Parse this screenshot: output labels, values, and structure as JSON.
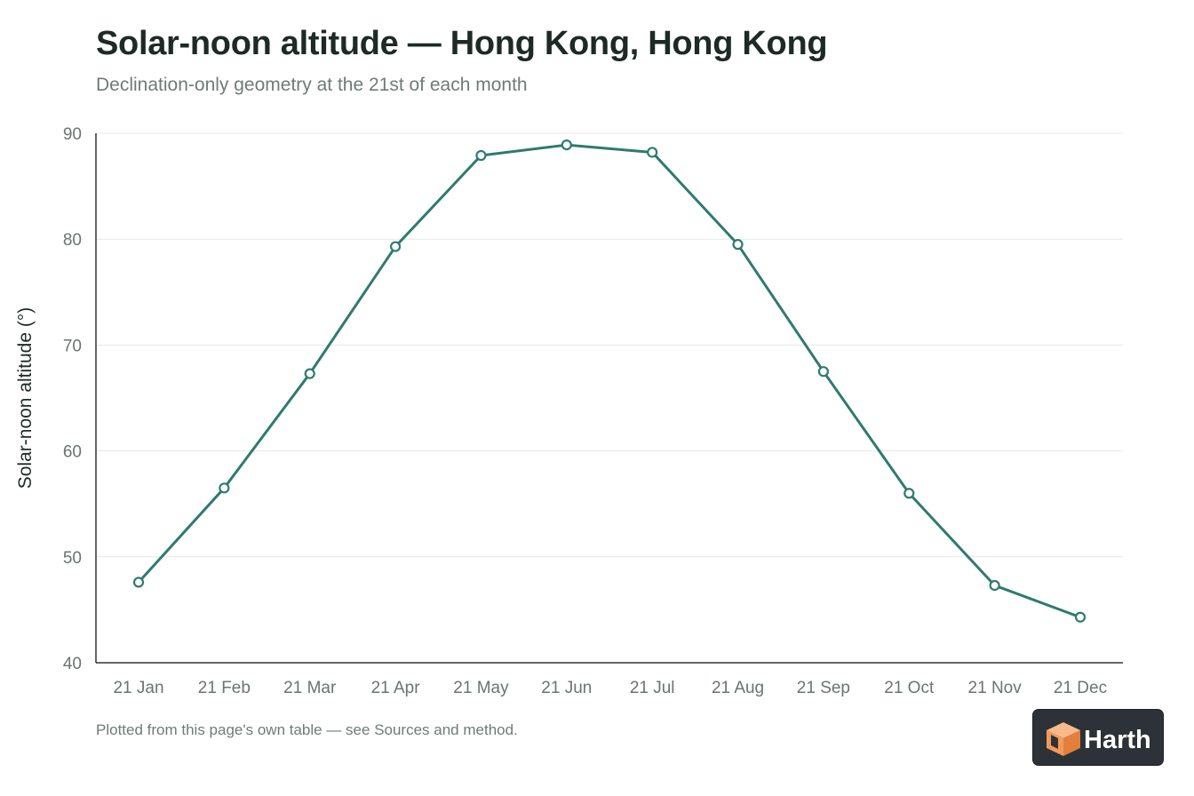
{
  "header": {
    "title": "Solar-noon altitude — Hong Kong, Hong Kong",
    "subtitle": "Declination-only geometry at the 21st of each month"
  },
  "footer": {
    "note": "Plotted from this page's own table — see Sources and method."
  },
  "logo": {
    "text": "Harth",
    "icon": "cube-icon"
  },
  "colors": {
    "series": "#2f7a70",
    "grid": "#e6e8e7",
    "axis": "#333333",
    "logo_bg": "#2c3237",
    "logo_orange": "#f29a5b"
  },
  "chart_data": {
    "type": "line",
    "title": "Solar-noon altitude — Hong Kong, Hong Kong",
    "subtitle": "Declination-only geometry at the 21st of each month",
    "xlabel": "",
    "ylabel": "Solar-noon altitude (°)",
    "ylim": [
      40,
      90
    ],
    "yticks": [
      40,
      50,
      60,
      70,
      80,
      90
    ],
    "grid": true,
    "legend": "none",
    "categories": [
      "21 Jan",
      "21 Feb",
      "21 Mar",
      "21 Apr",
      "21 May",
      "21 Jun",
      "21 Jul",
      "21 Aug",
      "21 Sep",
      "21 Oct",
      "21 Nov",
      "21 Dec"
    ],
    "series": [
      {
        "values": [
          47.6,
          56.5,
          67.3,
          79.3,
          87.9,
          88.9,
          88.2,
          79.5,
          67.5,
          56.0,
          47.3,
          44.3
        ]
      }
    ]
  }
}
